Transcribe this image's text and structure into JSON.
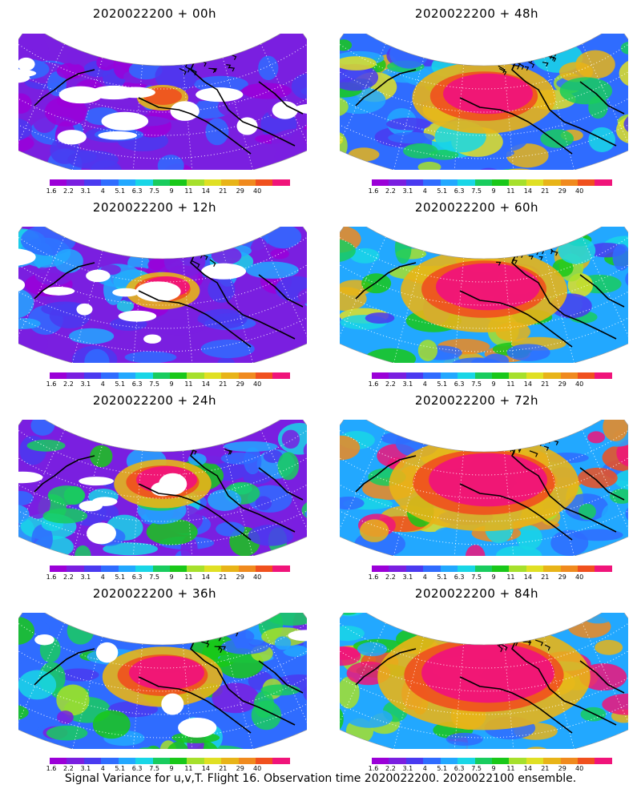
{
  "colorbar": {
    "ticks": [
      "1.6",
      "2.2",
      "3.1",
      "4",
      "5.1",
      "6.3",
      "7.5",
      "9",
      "11",
      "14",
      "21",
      "29",
      "40"
    ],
    "colors": [
      "#9b00d8",
      "#7a1fe0",
      "#4a3af0",
      "#2f6cff",
      "#22a8ff",
      "#19d6e6",
      "#19cc5e",
      "#19c819",
      "#a6e02c",
      "#e0e024",
      "#e8b418",
      "#f08a1e",
      "#f0501e",
      "#f0147a"
    ]
  },
  "panels": [
    {
      "title": "2020022200 + 00h",
      "level": 0
    },
    {
      "title": "2020022200 + 48h",
      "level": 4
    },
    {
      "title": "2020022200 + 12h",
      "level": 1
    },
    {
      "title": "2020022200 + 60h",
      "level": 5
    },
    {
      "title": "2020022200 + 24h",
      "level": 2
    },
    {
      "title": "2020022200 + 72h",
      "level": 6
    },
    {
      "title": "2020022200 + 36h",
      "level": 3
    },
    {
      "title": "2020022200 + 84h",
      "level": 7
    }
  ],
  "caption": "Signal Variance for u,v,T. Flight 16. Observation time 2020022200. 2020022100 ensemble."
}
